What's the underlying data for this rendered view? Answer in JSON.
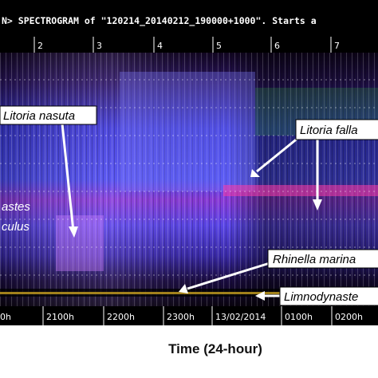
{
  "header": {
    "title": "N> SPECTROGRAM of \"120214_20140212_190000+1000\".  Starts a"
  },
  "top_ticks": [
    "2",
    "3",
    "4",
    "5",
    "6",
    "7"
  ],
  "bottom_ticks": [
    "0h",
    "2100h",
    "2200h",
    "2300h",
    "13/02/2014",
    "0100h",
    "0200h"
  ],
  "annotations": [
    "Litoria nasuta",
    "Litoria falla",
    "astes",
    "culus",
    "Rhinella marina",
    "Limnodynaste"
  ],
  "x_axis_title": "Time (24-hour)"
}
